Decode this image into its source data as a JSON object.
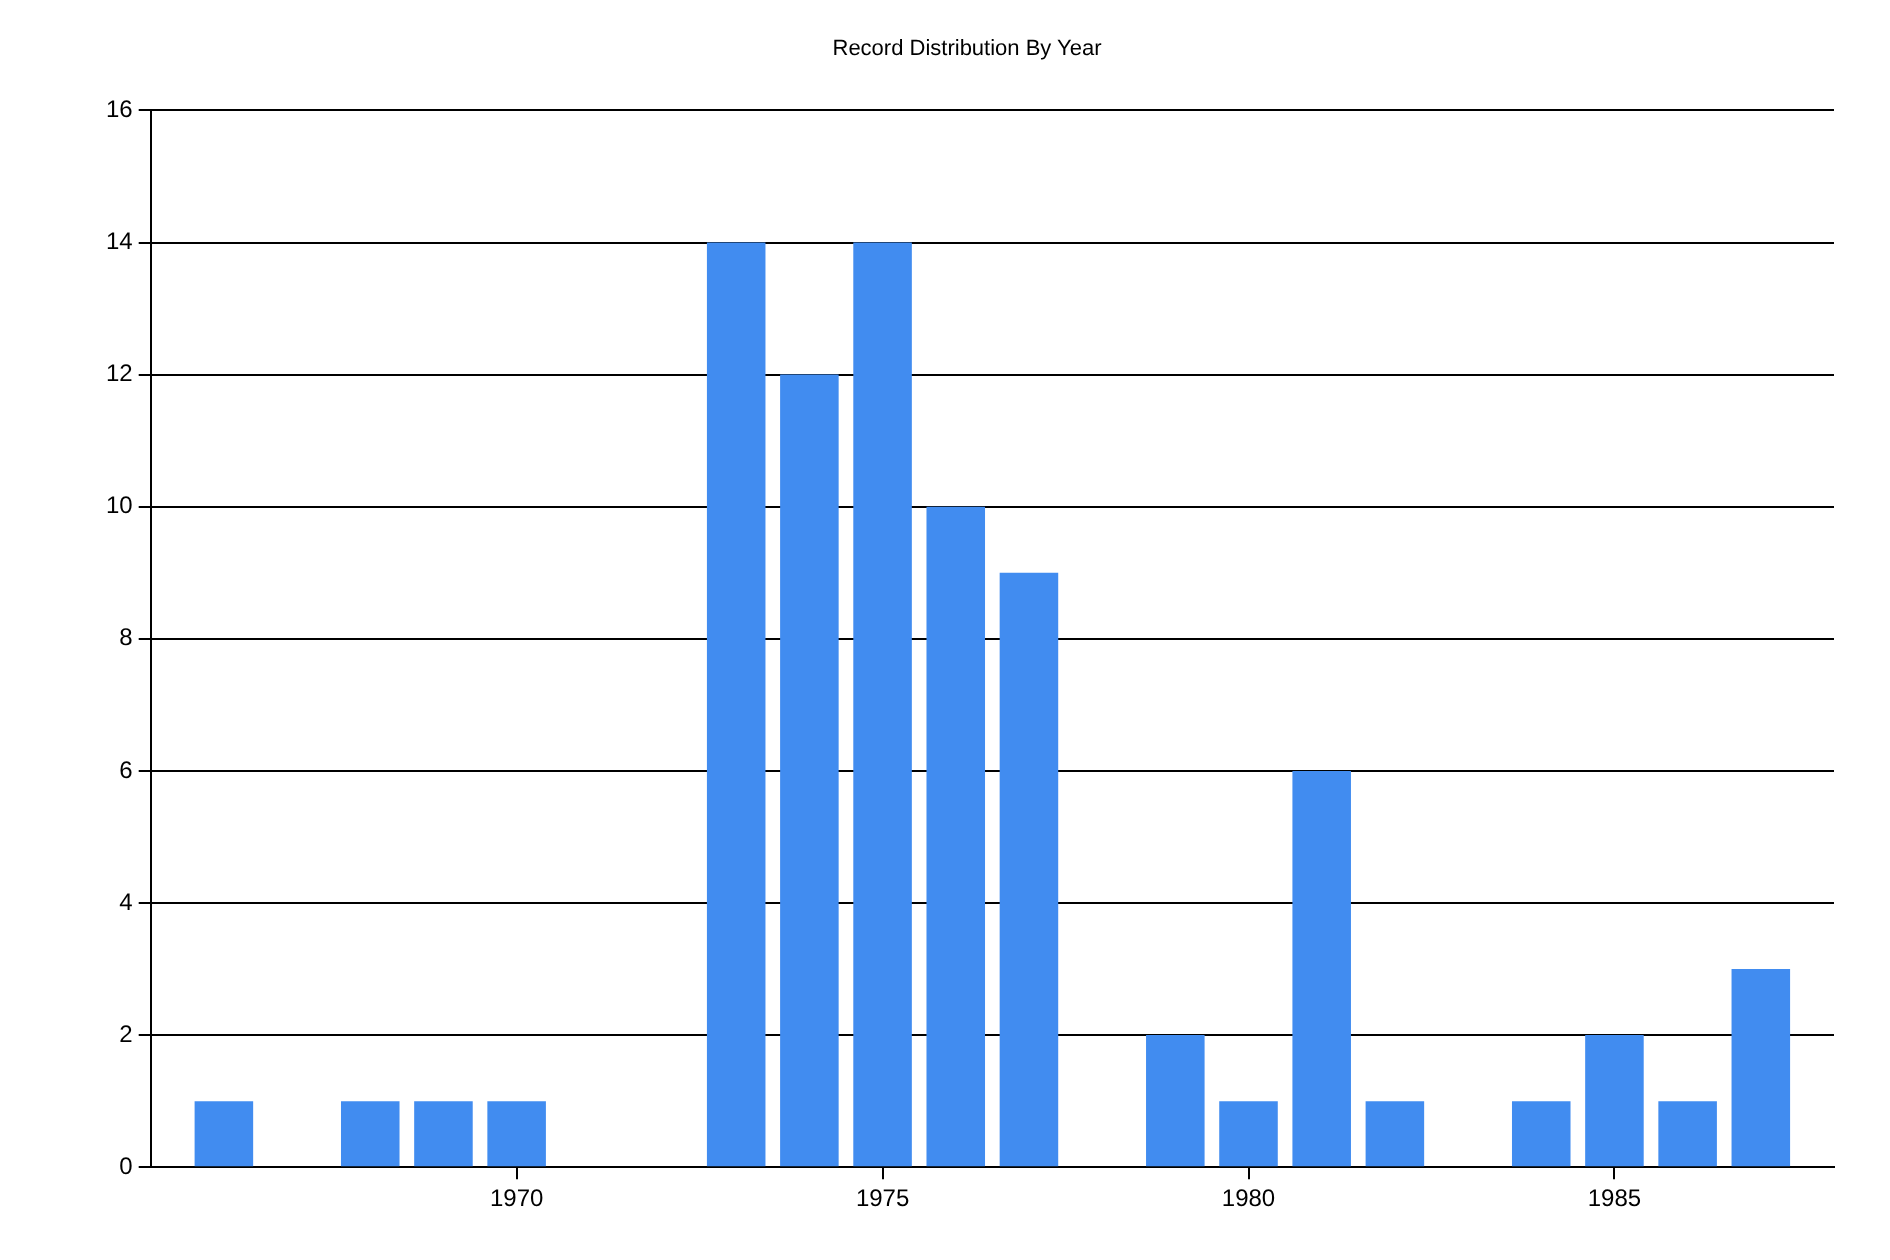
{
  "chart_data": {
    "type": "bar",
    "title": "Record Distribution By Year",
    "x": [
      1966,
      1968,
      1969,
      1970,
      1973,
      1974,
      1975,
      1976,
      1977,
      1979,
      1980,
      1981,
      1982,
      1984,
      1985,
      1986,
      1987
    ],
    "values": [
      1,
      1,
      1,
      1,
      14,
      12,
      14,
      10,
      9,
      2,
      1,
      6,
      1,
      1,
      2,
      1,
      3
    ],
    "color": "#418cf0",
    "xlim": [
      1965,
      1988
    ],
    "xticks": [
      1970,
      1975,
      1980,
      1985
    ],
    "ylim": [
      0,
      16
    ],
    "yticks": [
      0,
      2,
      4,
      6,
      8,
      10,
      12,
      14,
      16
    ],
    "grid": "y",
    "legend": false
  }
}
